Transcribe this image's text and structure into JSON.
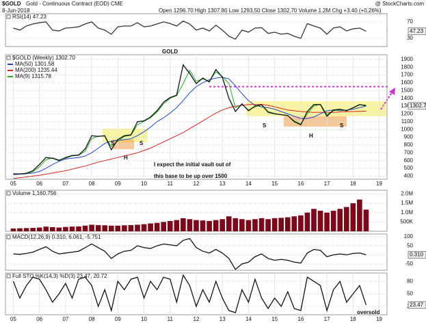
{
  "header": {
    "symbol": "$GOLD",
    "description": "Gold - Continuous Contract (EOD) CME",
    "date": "8-Jun-2018",
    "quote": "Open 1296.70  High 1307.80  Low 1293.50  Close 1302.70  Volume 1.2M  Chg +3.40 (+0.26%)",
    "source": "@ StockCharts.com"
  },
  "chart_data": [
    {
      "type": "line",
      "title": "RSI(14) 47.23",
      "current_label": "47.23",
      "xlim": [
        2004.7,
        2019.3
      ],
      "ylim": [
        10,
        90
      ],
      "yticks": [
        30,
        70
      ],
      "x": [
        2005,
        2005.25,
        2005.5,
        2005.75,
        2006,
        2006.25,
        2006.5,
        2006.75,
        2007,
        2007.25,
        2007.5,
        2007.75,
        2008,
        2008.25,
        2008.5,
        2008.75,
        2009,
        2009.25,
        2009.5,
        2009.75,
        2010,
        2010.25,
        2010.5,
        2010.75,
        2011,
        2011.25,
        2011.5,
        2011.75,
        2012,
        2012.25,
        2012.5,
        2012.75,
        2013,
        2013.25,
        2013.5,
        2013.75,
        2014,
        2014.25,
        2014.5,
        2014.75,
        2015,
        2015.25,
        2015.5,
        2015.75,
        2016,
        2016.25,
        2016.5,
        2016.75,
        2017,
        2017.25,
        2017.5,
        2017.75,
        2018,
        2018.25,
        2018.5
      ],
      "series": [
        {
          "name": "RSI(14)",
          "color": "#333333",
          "values": [
            55,
            50,
            60,
            65,
            68,
            70,
            50,
            48,
            55,
            56,
            58,
            65,
            70,
            55,
            50,
            40,
            58,
            60,
            60,
            68,
            58,
            60,
            65,
            70,
            66,
            60,
            72,
            65,
            50,
            55,
            48,
            62,
            50,
            35,
            28,
            50,
            45,
            55,
            56,
            42,
            45,
            40,
            42,
            35,
            30,
            66,
            60,
            55,
            40,
            55,
            58,
            48,
            53,
            55,
            47.23
          ]
        }
      ]
    },
    {
      "type": "line",
      "title": "$GOLD (Weekly) 1302.70",
      "current_label": "1302.7",
      "xlim": [
        2004.7,
        2019.3
      ],
      "ylim": [
        360,
        1960
      ],
      "yticks": [
        400,
        500,
        600,
        700,
        800,
        900,
        1000,
        1100,
        1200,
        1300,
        1400,
        1500,
        1600,
        1700,
        1800,
        1900
      ],
      "xticks": [
        {
          "value": 2005,
          "label": "05"
        },
        {
          "value": 2006,
          "label": "06"
        },
        {
          "value": 2007,
          "label": "07"
        },
        {
          "value": 2008,
          "label": "08"
        },
        {
          "value": 2009,
          "label": "09"
        },
        {
          "value": 2010,
          "label": "10"
        },
        {
          "value": 2011,
          "label": "11"
        },
        {
          "value": 2012,
          "label": "12"
        },
        {
          "value": 2013,
          "label": "13"
        },
        {
          "value": 2014,
          "label": "14"
        },
        {
          "value": 2015,
          "label": "15"
        },
        {
          "value": 2016,
          "label": "16"
        },
        {
          "value": 2017,
          "label": "17"
        },
        {
          "value": 2018,
          "label": "18"
        },
        {
          "value": 2019,
          "label": "19"
        }
      ],
      "hline": {
        "value": 1550,
        "color": "#cc33cc"
      },
      "annotations": [
        {
          "text": "GOLD",
          "color": "#3a78c9"
        },
        {
          "text": "I expect the initial vault out of",
          "color": "#9933cc"
        },
        {
          "text": "this base to be up over 1500",
          "color": "#9933cc"
        },
        {
          "text": "S",
          "color": "#9933cc"
        },
        {
          "text": "H",
          "color": "#9933cc"
        },
        {
          "text": "S",
          "color": "#9933cc"
        },
        {
          "text": "S",
          "color": "#3a78c9"
        },
        {
          "text": "H",
          "color": "#3a78c9"
        },
        {
          "text": "S",
          "color": "#3a78c9"
        }
      ],
      "x": [
        2005,
        2005.25,
        2005.5,
        2005.75,
        2006,
        2006.25,
        2006.5,
        2006.75,
        2007,
        2007.25,
        2007.5,
        2007.75,
        2008,
        2008.25,
        2008.5,
        2008.75,
        2009,
        2009.25,
        2009.5,
        2009.75,
        2010,
        2010.25,
        2010.5,
        2010.75,
        2011,
        2011.25,
        2011.5,
        2011.75,
        2012,
        2012.25,
        2012.5,
        2012.75,
        2013,
        2013.25,
        2013.5,
        2013.75,
        2014,
        2014.25,
        2014.5,
        2014.75,
        2015,
        2015.25,
        2015.5,
        2015.75,
        2016,
        2016.25,
        2016.5,
        2016.75,
        2017,
        2017.25,
        2017.5,
        2017.75,
        2018,
        2018.25,
        2018.5
      ],
      "series": [
        {
          "name": "MA(200) 1235.44",
          "color": "#d92020",
          "values": [
            370,
            380,
            390,
            400,
            410,
            425,
            440,
            455,
            470,
            490,
            510,
            530,
            555,
            580,
            600,
            620,
            640,
            660,
            680,
            700,
            730,
            760,
            800,
            840,
            880,
            920,
            960,
            1010,
            1060,
            1110,
            1160,
            1210,
            1250,
            1280,
            1300,
            1310,
            1320,
            1320,
            1320,
            1310,
            1290,
            1270,
            1250,
            1240,
            1230,
            1225,
            1220,
            1220,
            1220,
            1220,
            1225,
            1228,
            1230,
            1233,
            1235.44
          ]
        },
        {
          "name": "MA(50) 1301.58",
          "color": "#2244cc",
          "values": [
            420,
            425,
            430,
            440,
            460,
            500,
            550,
            590,
            620,
            630,
            640,
            660,
            700,
            760,
            820,
            850,
            860,
            870,
            880,
            920,
            970,
            1030,
            1100,
            1150,
            1210,
            1280,
            1370,
            1470,
            1550,
            1600,
            1640,
            1660,
            1670,
            1650,
            1560,
            1460,
            1370,
            1310,
            1290,
            1280,
            1260,
            1230,
            1200,
            1170,
            1140,
            1140,
            1160,
            1200,
            1240,
            1250,
            1240,
            1250,
            1260,
            1280,
            1301.58
          ]
        },
        {
          "name": "MA(9) 1315.78",
          "color": "#22aa22",
          "values": [
            428,
            430,
            433,
            455,
            520,
            610,
            635,
            610,
            630,
            660,
            668,
            720,
            880,
            915,
            915,
            780,
            850,
            910,
            925,
            1060,
            1105,
            1150,
            1225,
            1330,
            1400,
            1435,
            1590,
            1760,
            1620,
            1650,
            1620,
            1740,
            1680,
            1590,
            1280,
            1320,
            1250,
            1290,
            1315,
            1230,
            1205,
            1190,
            1175,
            1110,
            1070,
            1200,
            1300,
            1325,
            1190,
            1240,
            1255,
            1245,
            1275,
            1315,
            1315.78
          ]
        },
        {
          "name": "$GOLD (Weekly) 1302.70",
          "color": "#111111",
          "values": [
            430,
            427,
            437,
            470,
            550,
            640,
            630,
            600,
            640,
            665,
            670,
            750,
            920,
            910,
            920,
            740,
            870,
            920,
            930,
            1100,
            1110,
            1160,
            1240,
            1350,
            1410,
            1440,
            1830,
            1720,
            1590,
            1660,
            1610,
            1770,
            1670,
            1400,
            1230,
            1330,
            1240,
            1300,
            1320,
            1220,
            1200,
            1190,
            1180,
            1100,
            1060,
            1230,
            1320,
            1320,
            1170,
            1250,
            1260,
            1240,
            1280,
            1320,
            1302.7
          ]
        }
      ]
    },
    {
      "type": "bar",
      "title": "Volume 1,160,756",
      "xlim": [
        2004.7,
        2019.3
      ],
      "ylim": [
        0,
        2200000
      ],
      "yticks": [
        {
          "value": 500000,
          "label": "500K"
        },
        {
          "value": 1000000,
          "label": "1.0M"
        },
        {
          "value": 1500000,
          "label": "1.5M"
        },
        {
          "value": 2000000,
          "label": "2.0M"
        }
      ],
      "x": [
        2005,
        2005.25,
        2005.5,
        2005.75,
        2006,
        2006.25,
        2006.5,
        2006.75,
        2007,
        2007.25,
        2007.5,
        2007.75,
        2008,
        2008.25,
        2008.5,
        2008.75,
        2009,
        2009.25,
        2009.5,
        2009.75,
        2010,
        2010.25,
        2010.5,
        2010.75,
        2011,
        2011.25,
        2011.5,
        2011.75,
        2012,
        2012.25,
        2012.5,
        2012.75,
        2013,
        2013.25,
        2013.5,
        2013.75,
        2014,
        2014.25,
        2014.5,
        2014.75,
        2015,
        2015.25,
        2015.5,
        2015.75,
        2016,
        2016.25,
        2016.5,
        2016.75,
        2017,
        2017.25,
        2017.5,
        2017.75,
        2018,
        2018.25,
        2018.5
      ],
      "series": [
        {
          "name": "Volume",
          "color": "#7a0a1a",
          "values": [
            150000,
            160000,
            170000,
            180000,
            200000,
            250000,
            220000,
            200000,
            230000,
            250000,
            260000,
            300000,
            350000,
            330000,
            320000,
            300000,
            300000,
            320000,
            330000,
            350000,
            380000,
            420000,
            450000,
            500000,
            550000,
            600000,
            700000,
            650000,
            600000,
            580000,
            550000,
            600000,
            650000,
            800000,
            700000,
            650000,
            600000,
            650000,
            700000,
            650000,
            700000,
            720000,
            750000,
            800000,
            850000,
            1000000,
            1200000,
            1100000,
            1000000,
            1100000,
            1200000,
            1300000,
            1500000,
            1700000,
            1160756
          ]
        }
      ]
    },
    {
      "type": "line",
      "title": "MACD(12,26,9) 0.310, 6.061, -5.751",
      "current_label": "0.310",
      "xlim": [
        2004.7,
        2019.3
      ],
      "ylim": [
        -85,
        115
      ],
      "yticks": [
        -50,
        0,
        50,
        100
      ],
      "x": [
        2005,
        2005.25,
        2005.5,
        2005.75,
        2006,
        2006.25,
        2006.5,
        2006.75,
        2007,
        2007.25,
        2007.5,
        2007.75,
        2008,
        2008.25,
        2008.5,
        2008.75,
        2009,
        2009.25,
        2009.5,
        2009.75,
        2010,
        2010.25,
        2010.5,
        2010.75,
        2011,
        2011.25,
        2011.5,
        2011.75,
        2012,
        2012.25,
        2012.5,
        2012.75,
        2013,
        2013.25,
        2013.5,
        2013.75,
        2014,
        2014.25,
        2014.5,
        2014.75,
        2015,
        2015.25,
        2015.5,
        2015.75,
        2016,
        2016.25,
        2016.5,
        2016.75,
        2017,
        2017.25,
        2017.5,
        2017.75,
        2018,
        2018.25,
        2018.5
      ],
      "series": [
        {
          "name": "MACD",
          "color": "#111111",
          "values": [
            5,
            3,
            8,
            15,
            30,
            45,
            20,
            5,
            10,
            15,
            20,
            40,
            60,
            40,
            20,
            -20,
            5,
            20,
            25,
            50,
            40,
            35,
            50,
            60,
            55,
            50,
            80,
            90,
            40,
            20,
            10,
            30,
            10,
            -20,
            -80,
            -50,
            -40,
            -10,
            5,
            -20,
            -30,
            -25,
            -30,
            -40,
            -45,
            10,
            30,
            25,
            -10,
            0,
            5,
            0,
            8,
            10,
            0.31
          ]
        }
      ]
    },
    {
      "type": "line",
      "title": "Full STO %K(14,3) %D(3) 23.47, 20.72",
      "current_label": "23.47",
      "xlim": [
        2004.7,
        2019.3
      ],
      "ylim": [
        0,
        100
      ],
      "yticks": [
        20,
        50,
        80
      ],
      "xticks": [
        {
          "value": 2005,
          "label": "05"
        },
        {
          "value": 2006,
          "label": "06"
        },
        {
          "value": 2007,
          "label": "07"
        },
        {
          "value": 2008,
          "label": "08"
        },
        {
          "value": 2009,
          "label": "09"
        },
        {
          "value": 2010,
          "label": "10"
        },
        {
          "value": 2011,
          "label": "11"
        },
        {
          "value": 2012,
          "label": "12"
        },
        {
          "value": 2013,
          "label": "13"
        },
        {
          "value": 2014,
          "label": "14"
        },
        {
          "value": 2015,
          "label": "15"
        },
        {
          "value": 2016,
          "label": "16"
        },
        {
          "value": 2017,
          "label": "17"
        },
        {
          "value": 2018,
          "label": "18"
        },
        {
          "value": 2019,
          "label": "19"
        }
      ],
      "annotations": [
        {
          "text": "oversold",
          "color": "#dd1111"
        }
      ],
      "x": [
        2005,
        2005.25,
        2005.5,
        2005.75,
        2006,
        2006.25,
        2006.5,
        2006.75,
        2007,
        2007.25,
        2007.5,
        2007.75,
        2008,
        2008.25,
        2008.5,
        2008.75,
        2009,
        2009.25,
        2009.5,
        2009.75,
        2010,
        2010.25,
        2010.5,
        2010.75,
        2011,
        2011.25,
        2011.5,
        2011.75,
        2012,
        2012.25,
        2012.5,
        2012.75,
        2013,
        2013.25,
        2013.5,
        2013.75,
        2014,
        2014.25,
        2014.5,
        2014.75,
        2015,
        2015.25,
        2015.5,
        2015.75,
        2016,
        2016.25,
        2016.5,
        2016.75,
        2017,
        2017.25,
        2017.5,
        2017.75,
        2018,
        2018.25,
        2018.5
      ],
      "series": [
        {
          "name": "%K",
          "color": "#111111",
          "values": [
            80,
            40,
            70,
            90,
            85,
            60,
            30,
            50,
            75,
            40,
            85,
            90,
            70,
            20,
            60,
            10,
            80,
            60,
            85,
            90,
            40,
            80,
            60,
            90,
            85,
            30,
            95,
            70,
            20,
            60,
            30,
            80,
            40,
            10,
            5,
            60,
            30,
            85,
            40,
            15,
            40,
            20,
            55,
            15,
            10,
            90,
            80,
            70,
            10,
            60,
            80,
            30,
            50,
            70,
            23.47
          ]
        }
      ]
    }
  ]
}
